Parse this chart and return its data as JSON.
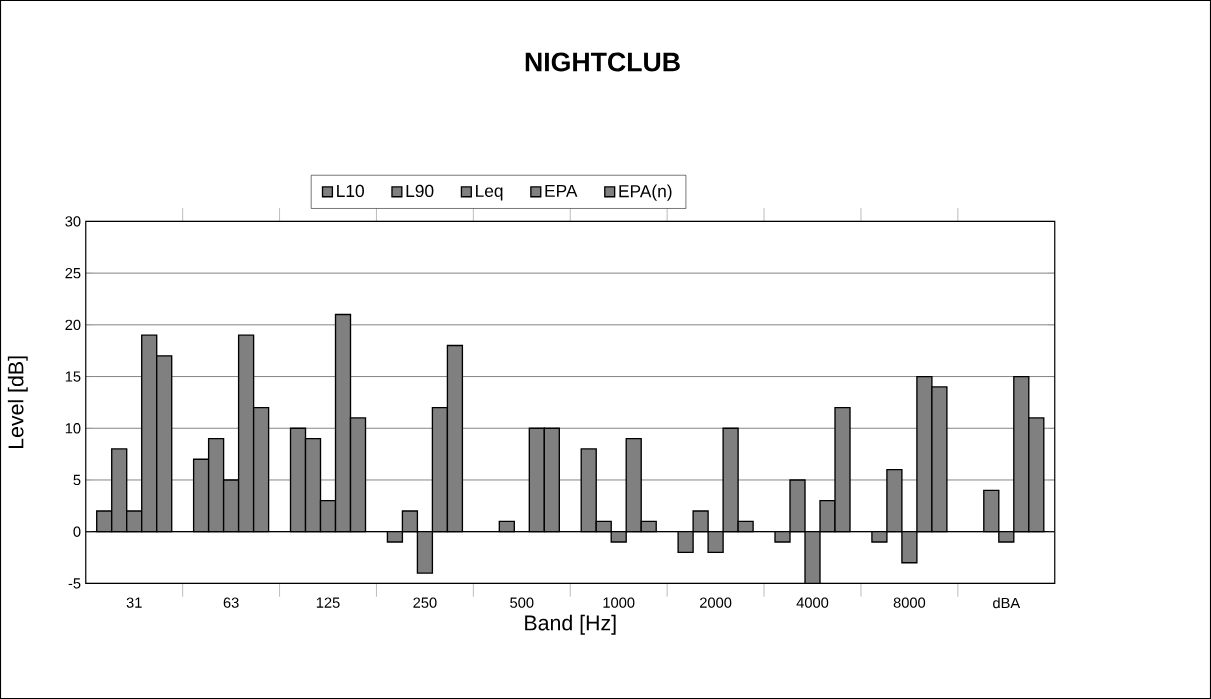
{
  "chart_data": {
    "type": "bar",
    "title": "NIGHTCLUB",
    "xlabel": "Band [Hz]",
    "ylabel": "Level [dB]",
    "categories": [
      "31",
      "63",
      "125",
      "250",
      "500",
      "1000",
      "2000",
      "4000",
      "8000",
      "dBA"
    ],
    "series": [
      {
        "name": "L10",
        "color": "#808080",
        "values": [
          2,
          7,
          10,
          -1,
          null,
          8,
          -2,
          -1,
          -1,
          null
        ]
      },
      {
        "name": "L90",
        "color": "#808080",
        "values": [
          8,
          9,
          9,
          2,
          1,
          1,
          2,
          5,
          6,
          4
        ]
      },
      {
        "name": "Leq",
        "color": "#808080",
        "values": [
          2,
          5,
          3,
          -4,
          null,
          -1,
          -2,
          -5,
          -3,
          -1
        ]
      },
      {
        "name": "EPA",
        "color": "#808080",
        "values": [
          19,
          19,
          21,
          12,
          10,
          9,
          10,
          3,
          15,
          15
        ]
      },
      {
        "name": "EPA(n)",
        "color": "#808080",
        "values": [
          17,
          12,
          11,
          18,
          10,
          1,
          1,
          12,
          14,
          11
        ]
      }
    ],
    "ylim": [
      -5,
      30
    ],
    "yticks": [
      -5,
      0,
      5,
      10,
      15,
      20,
      25,
      30
    ],
    "grid": "y",
    "legend": "top"
  }
}
